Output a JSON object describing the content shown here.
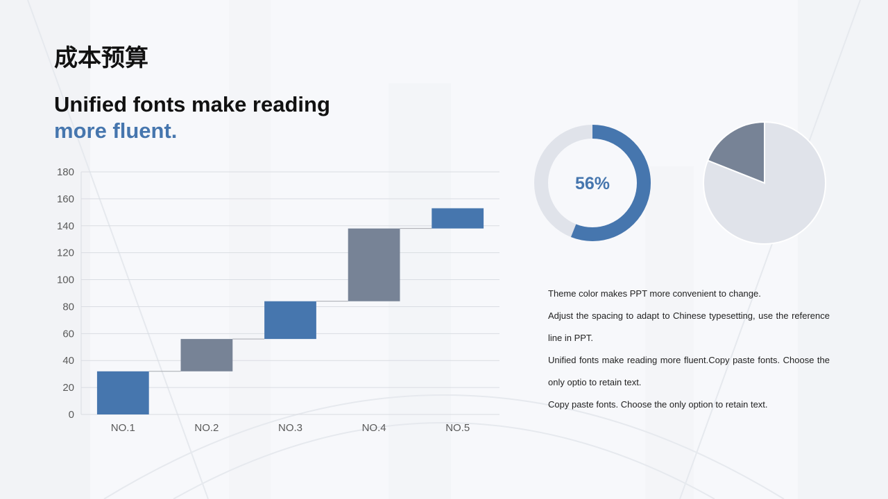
{
  "slide": {
    "title": "成本预算",
    "headline_line1": "Unified fonts make reading",
    "headline_line2": "more fluent."
  },
  "colors": {
    "blue": "#4676ae",
    "slate": "#778396",
    "light": "#e0e3ea",
    "grid": "#d9dce2",
    "connector": "#a6a9ae",
    "axis_text": "#595959"
  },
  "chart_data": [
    {
      "type": "bar",
      "subtype": "waterfall",
      "categories": [
        "NO.1",
        "NO.2",
        "NO.3",
        "NO.4",
        "NO.5"
      ],
      "series": [
        {
          "values": [
            32,
            24,
            28,
            54,
            15
          ],
          "base": [
            0,
            32,
            56,
            84,
            138
          ]
        }
      ],
      "bar_colors": [
        "#4676ae",
        "#778396",
        "#4676ae",
        "#778396",
        "#4676ae"
      ],
      "ylim": [
        0,
        180
      ],
      "yticks": [
        0,
        20,
        40,
        60,
        80,
        100,
        120,
        140,
        160,
        180
      ],
      "grid": true,
      "xlabel": "",
      "ylabel": ""
    },
    {
      "type": "pie",
      "subtype": "donut",
      "values": [
        56,
        44
      ],
      "label": "56%",
      "colors": [
        "#4676ae",
        "#e0e3ea"
      ]
    },
    {
      "type": "pie",
      "values": [
        19,
        81
      ],
      "colors": [
        "#778396",
        "#e0e3ea"
      ]
    }
  ],
  "notes": [
    "Theme color makes PPT more convenient to change.",
    "Adjust the spacing to adapt to Chinese typesetting, use the reference line in PPT.",
    "Unified fonts make reading more fluent.Copy paste fonts. Choose the only optio to retain text.",
    "Copy paste  fonts. Choose the only option to retain text."
  ]
}
